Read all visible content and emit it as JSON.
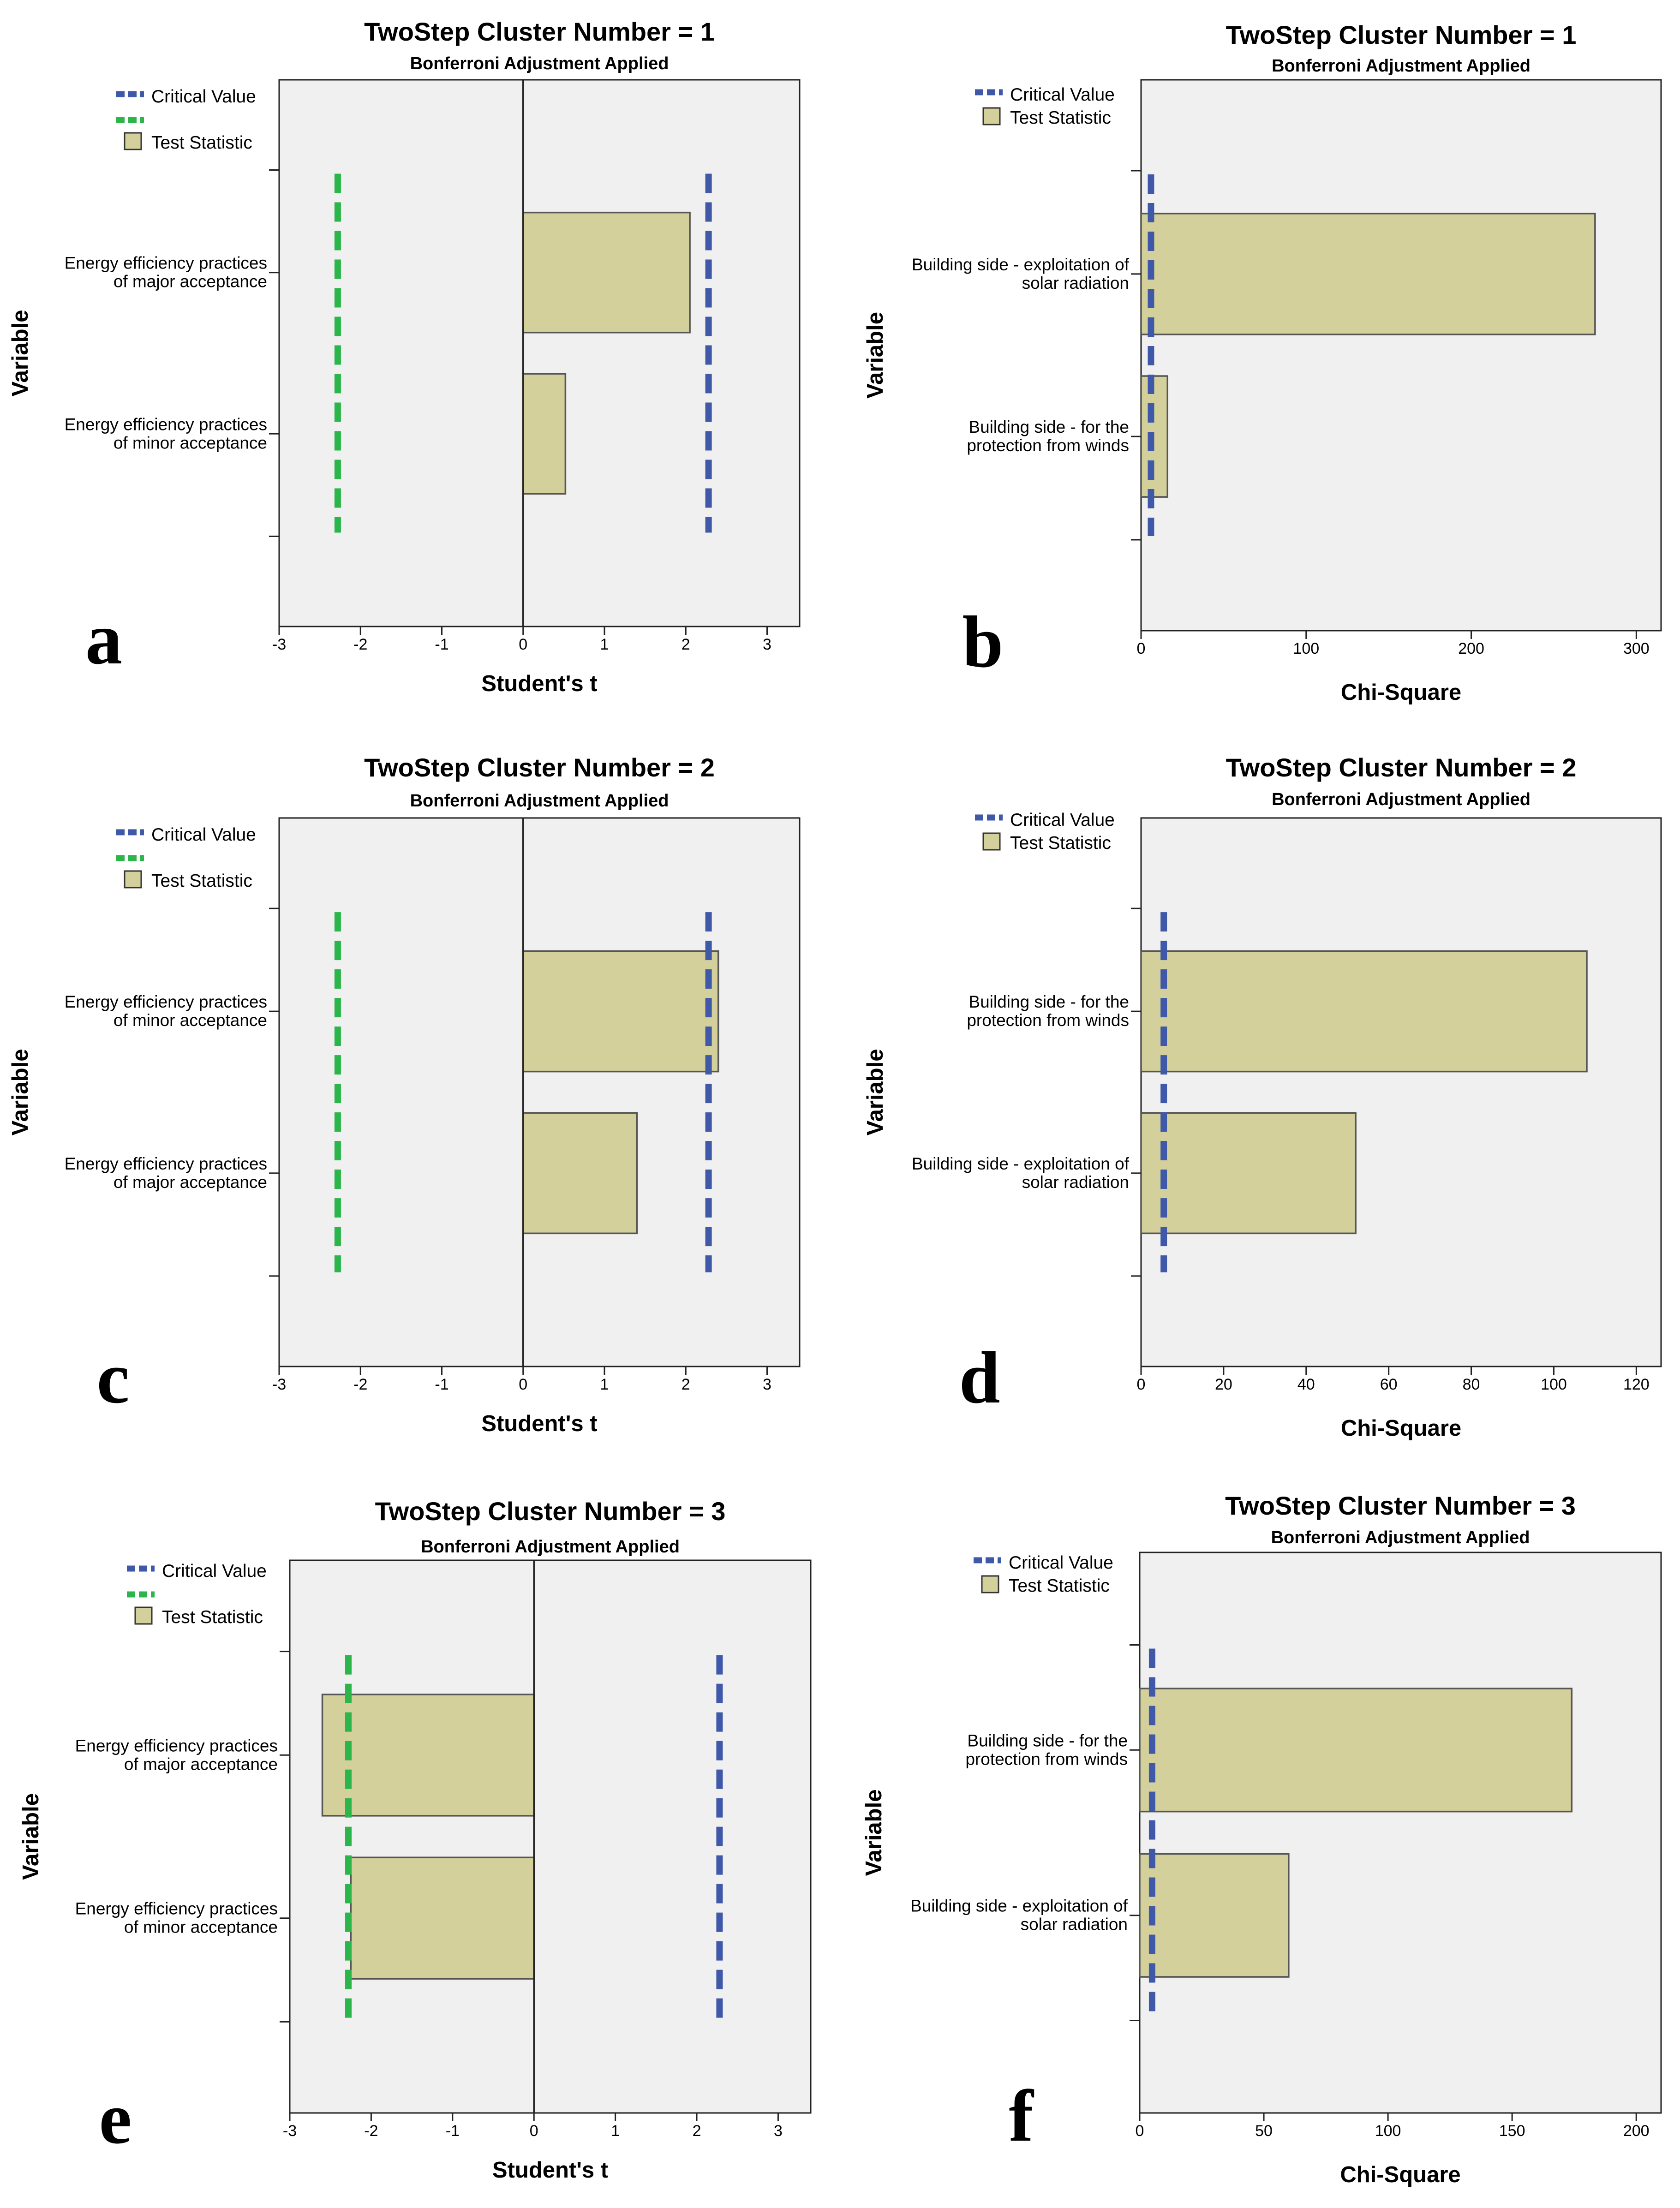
{
  "legend": {
    "critical_label": "Critical Value",
    "test_label": "Test Statistic"
  },
  "colors": {
    "bar_fill": "#d4d09c",
    "bar_stroke": "#555555",
    "critical_pos": "#4058a8",
    "critical_neg": "#2cb54a",
    "plot_bg": "#f0f0f0"
  },
  "chart_data": [
    {
      "panel": "a",
      "type": "bar",
      "orientation": "horizontal",
      "stat": "t",
      "title": "TwoStep Cluster Number = 1",
      "subtitle": "Bonferroni Adjustment Applied",
      "xlabel": "Student's t",
      "ylabel": "Variable",
      "xlim": [
        -3,
        3.4
      ],
      "xticks": [
        -3,
        -2,
        -1,
        0,
        1,
        2,
        3
      ],
      "categories": [
        [
          "Energy efficiency practices",
          "of major acceptance"
        ],
        [
          "Energy efficiency practices",
          "of minor acceptance"
        ]
      ],
      "values": [
        2.05,
        0.52
      ],
      "critical_values": [
        -2.28,
        2.28
      ]
    },
    {
      "panel": "b",
      "type": "bar",
      "orientation": "horizontal",
      "stat": "chi",
      "title": "TwoStep Cluster Number = 1",
      "subtitle": "Bonferroni Adjustment Applied",
      "xlabel": "Chi-Square",
      "ylabel": "Variable",
      "xlim": [
        0,
        315
      ],
      "xticks": [
        0,
        100,
        200,
        300
      ],
      "categories": [
        [
          "Building side - exploitation of",
          "solar radiation"
        ],
        [
          "Building side - for the",
          "protection from winds"
        ]
      ],
      "values": [
        275,
        16
      ],
      "critical_values": [
        6
      ]
    },
    {
      "panel": "c",
      "type": "bar",
      "orientation": "horizontal",
      "stat": "t",
      "title": "TwoStep Cluster Number = 2",
      "subtitle": "Bonferroni Adjustment Applied",
      "xlabel": "Student's t",
      "ylabel": "Variable",
      "xlim": [
        -3,
        3.4
      ],
      "xticks": [
        -3,
        -2,
        -1,
        0,
        1,
        2,
        3
      ],
      "categories": [
        [
          "Energy efficiency practices",
          "of minor acceptance"
        ],
        [
          "Energy efficiency practices",
          "of major acceptance"
        ]
      ],
      "values": [
        2.4,
        1.4
      ],
      "critical_values": [
        -2.28,
        2.28
      ]
    },
    {
      "panel": "d",
      "type": "bar",
      "orientation": "horizontal",
      "stat": "chi",
      "title": "TwoStep Cluster Number = 2",
      "subtitle": "Bonferroni Adjustment Applied",
      "xlabel": "Chi-Square",
      "ylabel": "Variable",
      "xlim": [
        0,
        126
      ],
      "xticks": [
        0,
        20,
        40,
        60,
        80,
        100,
        120
      ],
      "categories": [
        [
          "Building side - for the",
          "protection from winds"
        ],
        [
          "Building side - exploitation of",
          "solar radiation"
        ]
      ],
      "values": [
        108,
        52
      ],
      "critical_values": [
        5.5
      ]
    },
    {
      "panel": "e",
      "type": "bar",
      "orientation": "horizontal",
      "stat": "t",
      "title": "TwoStep Cluster Number = 3",
      "subtitle": "Bonferroni Adjustment Applied",
      "xlabel": "Student's t",
      "ylabel": "Variable",
      "xlim": [
        -3,
        3.4
      ],
      "xticks": [
        -3,
        -2,
        -1,
        0,
        1,
        2,
        3
      ],
      "categories": [
        [
          "Energy efficiency practices",
          "of major acceptance"
        ],
        [
          "Energy efficiency practices",
          "of minor acceptance"
        ]
      ],
      "values": [
        -2.6,
        -2.25
      ],
      "critical_values": [
        -2.28,
        2.28
      ]
    },
    {
      "panel": "f",
      "type": "bar",
      "orientation": "horizontal",
      "stat": "chi",
      "title": "TwoStep Cluster Number = 3",
      "subtitle": "Bonferroni Adjustment Applied",
      "xlabel": "Chi-Square",
      "ylabel": "Variable",
      "xlim": [
        0,
        210
      ],
      "xticks": [
        0,
        50,
        100,
        150,
        200
      ],
      "categories": [
        [
          "Building side - for the",
          "protection from winds"
        ],
        [
          "Building side - exploitation of",
          "solar radiation"
        ]
      ],
      "values": [
        174,
        60
      ],
      "critical_values": [
        5
      ]
    }
  ]
}
